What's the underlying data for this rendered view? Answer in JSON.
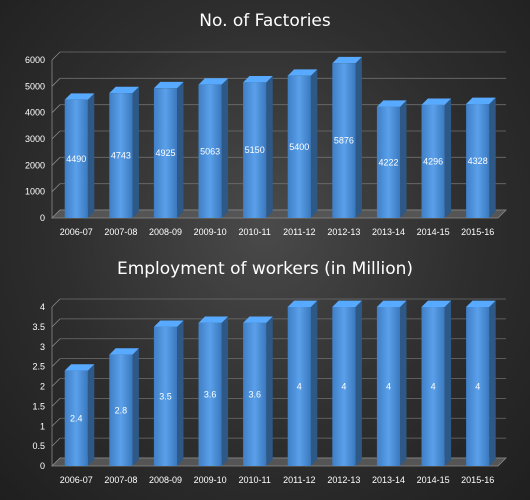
{
  "chart_data": [
    {
      "type": "bar",
      "title": "No. of Factories",
      "categories": [
        "2006-07",
        "2007-08",
        "2008-09",
        "2009-10",
        "2010-11",
        "2011-12",
        "2012-13",
        "2013-14",
        "2014-15",
        "2015-16"
      ],
      "values": [
        4490,
        4743,
        4925,
        5063,
        5150,
        5400,
        5876,
        4222,
        4296,
        4328
      ],
      "data_labels": [
        "4490",
        "4743",
        "4925",
        "5063",
        "5150",
        "5400",
        "5876",
        "4222",
        "4296",
        "4328"
      ],
      "ylim": [
        0,
        6000
      ],
      "yticks": [
        "0",
        "1000",
        "2000",
        "3000",
        "4000",
        "5000",
        "6000"
      ],
      "grid": true,
      "bar_color": "#4a90d9"
    },
    {
      "type": "bar",
      "title": "Employment of workers (in Million)",
      "categories": [
        "2006-07",
        "2007-08",
        "2008-09",
        "2009-10",
        "2010-11",
        "2011-12",
        "2012-13",
        "2013-14",
        "2014-15",
        "2015-16"
      ],
      "values": [
        2.4,
        2.8,
        3.5,
        3.6,
        3.6,
        4,
        4,
        4,
        4,
        4
      ],
      "data_labels": [
        "2.4",
        "2.8",
        "3.5",
        "3.6",
        "3.6",
        "4",
        "4",
        "4",
        "4",
        "4"
      ],
      "ylim": [
        0,
        4
      ],
      "yticks": [
        "0",
        "0.5",
        "1",
        "1.5",
        "2",
        "2.5",
        "3",
        "3.5",
        "4"
      ],
      "grid": true,
      "bar_color": "#4a90d9"
    }
  ]
}
